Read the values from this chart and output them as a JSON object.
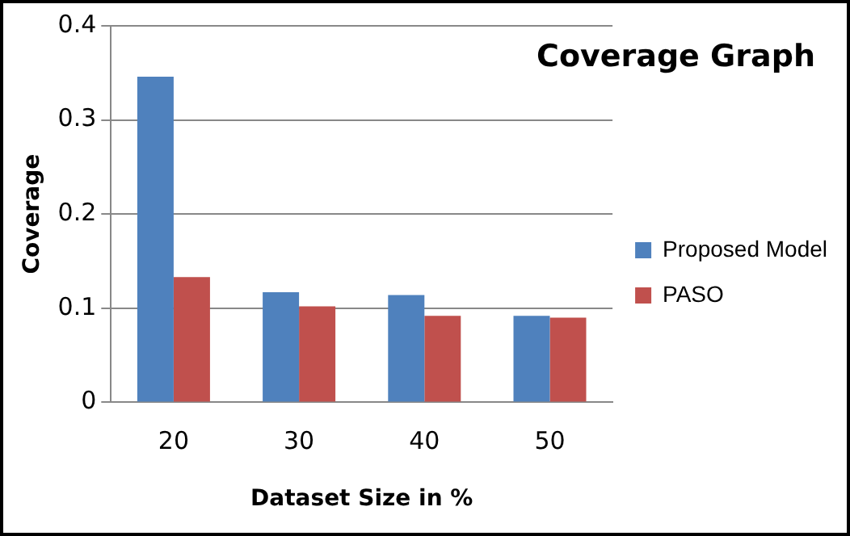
{
  "chart_data": {
    "type": "bar",
    "title": "Coverage Graph",
    "xlabel": "Dataset Size in %",
    "ylabel": "Coverage",
    "categories": [
      "20",
      "30",
      "40",
      "50"
    ],
    "series": [
      {
        "name": "Proposed Model",
        "color": "#4f81bd",
        "values": [
          0.346,
          0.117,
          0.114,
          0.092
        ]
      },
      {
        "name": "PASO",
        "color": "#c0504d",
        "values": [
          0.133,
          0.102,
          0.092,
          0.09
        ]
      }
    ],
    "ylim": [
      0,
      0.4
    ],
    "yticks": [
      0,
      0.1,
      0.2,
      0.3,
      0.4
    ],
    "grid": "y",
    "legend": "right"
  }
}
